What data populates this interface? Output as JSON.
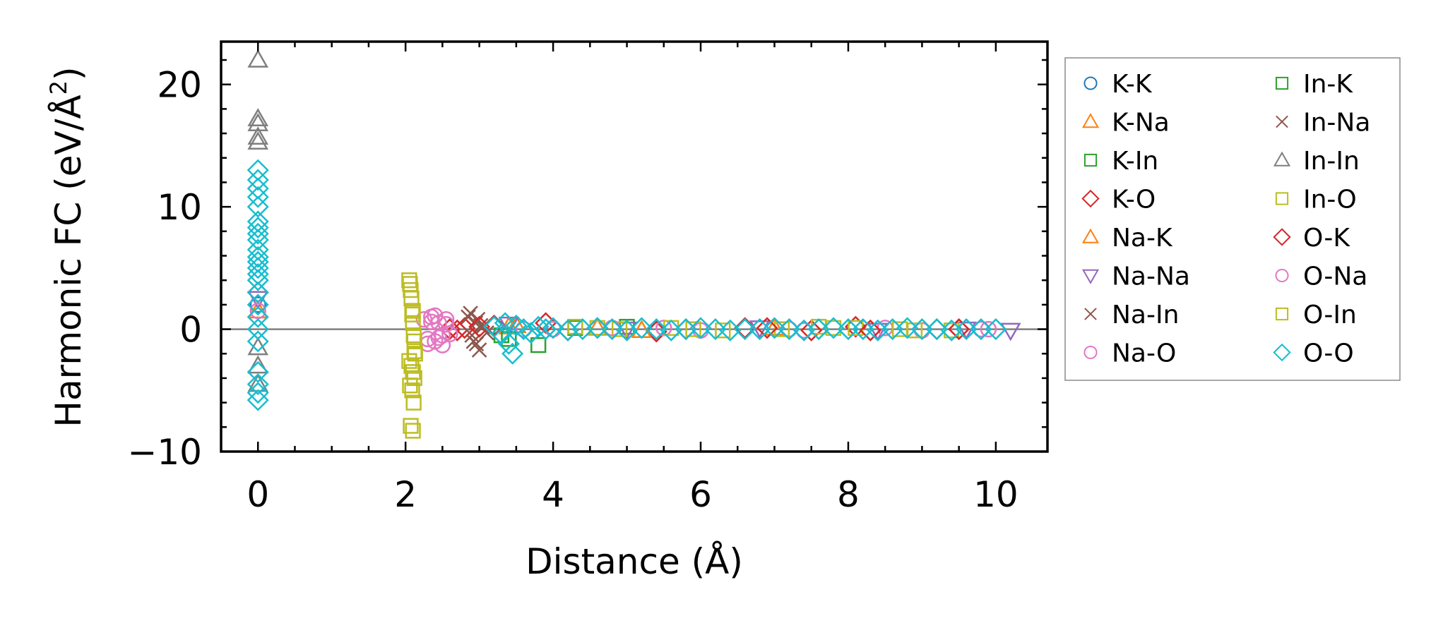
{
  "chart_data": {
    "type": "scatter",
    "title": "",
    "xlabel": "Distance (Å)",
    "ylabel": "Harmonic FC (eV/Å²)",
    "ylabel_parts": [
      "Harmonic FC (eV/Å",
      "2",
      ")"
    ],
    "xlim": [
      -0.5,
      10.7
    ],
    "ylim": [
      -10,
      23.5
    ],
    "x_ticks": [
      0,
      2,
      4,
      6,
      8,
      10
    ],
    "x_tick_labels": [
      "0",
      "2",
      "4",
      "6",
      "8",
      "10"
    ],
    "y_ticks": [
      -10,
      0,
      10,
      20
    ],
    "y_tick_labels": [
      "−10",
      "0",
      "10",
      "20"
    ],
    "reference_line": 0,
    "legend_position": "outside-right",
    "series": [
      {
        "name": "K-K",
        "color": "#1f77b4",
        "marker": "circle",
        "x": [
          0.0
        ],
        "y": [
          2.0
        ]
      },
      {
        "name": "K-Na",
        "color": "#ff7f0e",
        "marker": "triangle-up",
        "x": [
          0.0,
          3.4,
          4.6
        ],
        "y": [
          1.5,
          0.2,
          0.1
        ]
      },
      {
        "name": "K-In",
        "color": "#2ca02c",
        "marker": "square",
        "x": [
          3.3,
          3.8,
          5.0
        ],
        "y": [
          -0.5,
          -1.3,
          0.2
        ]
      },
      {
        "name": "K-O",
        "color": "#d62728",
        "marker": "diamond",
        "x": [
          0.0,
          2.6,
          2.7,
          2.8,
          3.2,
          3.9,
          4.6,
          5.4,
          6.6,
          7.5,
          8.1,
          9.2
        ],
        "y": [
          3.0,
          0.0,
          -0.1,
          0.1,
          0.3,
          0.5,
          0.1,
          -0.2,
          0.1,
          -0.1,
          0.2,
          0.0
        ]
      },
      {
        "name": "Na-K",
        "color": "#ff7f0e",
        "marker": "triangle-up",
        "x": [
          3.5,
          5.2,
          7.0
        ],
        "y": [
          0.3,
          -0.1,
          0.1
        ]
      },
      {
        "name": "Na-Na",
        "color": "#9467bd",
        "marker": "triangle-down",
        "x": [
          0.0,
          3.4,
          5.0,
          6.8,
          8.4,
          9.6,
          10.2
        ],
        "y": [
          2.5,
          0.4,
          0.0,
          0.1,
          -0.1,
          0.0,
          -0.1
        ]
      },
      {
        "name": "Na-In",
        "color": "#8c564b",
        "marker": "x",
        "x": [
          2.85,
          2.9,
          2.95,
          3.0,
          3.05,
          2.92,
          2.98,
          3.1
        ],
        "y": [
          1.0,
          -0.5,
          0.5,
          -1.7,
          0.2,
          -1.0,
          0.8,
          -0.3
        ]
      },
      {
        "name": "Na-O",
        "color": "#e377c2",
        "marker": "circle",
        "x": [
          0.0,
          2.25,
          2.3,
          2.35,
          2.4,
          2.45,
          2.5,
          2.55,
          2.6,
          2.3,
          2.4,
          2.5,
          4.0,
          5.5,
          6.0,
          7.2,
          8.5,
          9.0,
          9.8
        ],
        "y": [
          1.5,
          0.8,
          -0.8,
          1.0,
          -1.0,
          0.5,
          -0.5,
          0.8,
          -0.4,
          -1.2,
          1.1,
          -1.3,
          0.0,
          0.1,
          -0.1,
          0.0,
          0.1,
          -0.1,
          0.0
        ]
      },
      {
        "name": "In-K",
        "color": "#2ca02c",
        "marker": "square",
        "x": [
          3.4,
          4.3
        ],
        "y": [
          -0.8,
          0.1
        ]
      },
      {
        "name": "In-Na",
        "color": "#8c564b",
        "marker": "x",
        "x": [
          2.88,
          2.96,
          3.02
        ],
        "y": [
          1.3,
          -1.2,
          0.3
        ]
      },
      {
        "name": "In-In",
        "color": "#7f7f7f",
        "marker": "triangle-up",
        "x": [
          0.0,
          0.0,
          0.0,
          0.0,
          0.0,
          0.0,
          0.0,
          0.0
        ],
        "y": [
          22.0,
          17.2,
          16.8,
          15.7,
          15.3,
          -1.5,
          -3.0,
          -4.5
        ]
      },
      {
        "name": "In-O",
        "color": "#bcbd22",
        "marker": "square",
        "x": [
          2.05,
          2.06,
          2.07,
          2.08,
          2.09,
          2.1,
          2.11,
          2.12,
          2.13,
          2.05,
          2.08,
          2.1,
          2.12,
          2.06,
          2.09,
          2.11,
          2.07,
          2.1,
          4.3,
          4.9,
          5.6,
          6.3,
          7.1,
          7.6,
          8.1,
          8.7,
          9.4
        ],
        "y": [
          4.0,
          3.7,
          3.2,
          2.5,
          1.2,
          0.5,
          -0.5,
          -1.0,
          -2.0,
          -2.6,
          -3.0,
          -3.5,
          -4.0,
          -4.6,
          -5.0,
          -6.0,
          -7.9,
          -8.3,
          0.2,
          0.0,
          0.1,
          -0.1,
          0.0,
          0.2,
          0.1,
          0.0,
          -0.1
        ]
      },
      {
        "name": "O-K",
        "color": "#d62728",
        "marker": "diamond",
        "x": [
          3.0,
          4.2,
          5.8,
          6.9,
          8.3,
          9.5
        ],
        "y": [
          0.2,
          -0.1,
          0.0,
          0.1,
          -0.1,
          0.0
        ]
      },
      {
        "name": "O-Na",
        "color": "#e377c2",
        "marker": "circle",
        "x": [
          2.35,
          2.45,
          2.55,
          3.6,
          4.8,
          7.4,
          9.9
        ],
        "y": [
          0.6,
          -0.7,
          0.4,
          0.0,
          0.1,
          -0.1,
          0.0
        ]
      },
      {
        "name": "O-In",
        "color": "#bcbd22",
        "marker": "square",
        "x": [
          2.1,
          2.12,
          4.6,
          5.9,
          7.8,
          8.9
        ],
        "y": [
          1.5,
          -1.8,
          0.1,
          0.0,
          0.1,
          -0.1
        ]
      },
      {
        "name": "O-O",
        "color": "#17becf",
        "marker": "diamond",
        "x": [
          0.0,
          0.0,
          0.0,
          0.0,
          0.0,
          0.0,
          0.0,
          0.0,
          0.0,
          0.0,
          0.0,
          0.0,
          0.0,
          0.0,
          0.0,
          0.0,
          0.0,
          0.0,
          0.0,
          0.0,
          0.0,
          0.0,
          0.0,
          0.0,
          3.2,
          3.3,
          3.35,
          3.4,
          3.45,
          3.5,
          3.6,
          3.7,
          3.8,
          3.9,
          4.0,
          4.2,
          4.4,
          4.6,
          4.8,
          5.0,
          5.2,
          5.4,
          5.6,
          5.8,
          6.0,
          6.2,
          6.4,
          6.6,
          6.8,
          7.0,
          7.2,
          7.4,
          7.6,
          7.8,
          8.0,
          8.2,
          8.4,
          8.6,
          8.8,
          9.0,
          9.2,
          9.4,
          9.6,
          9.8,
          10.0
        ],
        "y": [
          13.0,
          12.2,
          11.5,
          10.8,
          10.0,
          8.8,
          8.3,
          7.8,
          7.3,
          6.5,
          5.9,
          5.5,
          5.0,
          4.5,
          4.0,
          3.0,
          2.0,
          1.0,
          0.0,
          -1.0,
          -3.5,
          -4.5,
          -5.2,
          -5.8,
          0.2,
          -0.4,
          0.5,
          -1.2,
          -2.0,
          0.3,
          0.0,
          -0.3,
          0.2,
          0.0,
          0.1,
          -0.1,
          0.0,
          0.1,
          0.0,
          -0.1,
          0.1,
          0.0,
          -0.1,
          0.0,
          0.1,
          0.0,
          -0.1,
          0.0,
          0.0,
          0.1,
          0.0,
          -0.1,
          0.0,
          0.1,
          0.0,
          0.0,
          -0.1,
          0.0,
          0.1,
          0.0,
          0.0,
          -0.1,
          0.0,
          0.0,
          0.0
        ]
      }
    ]
  }
}
